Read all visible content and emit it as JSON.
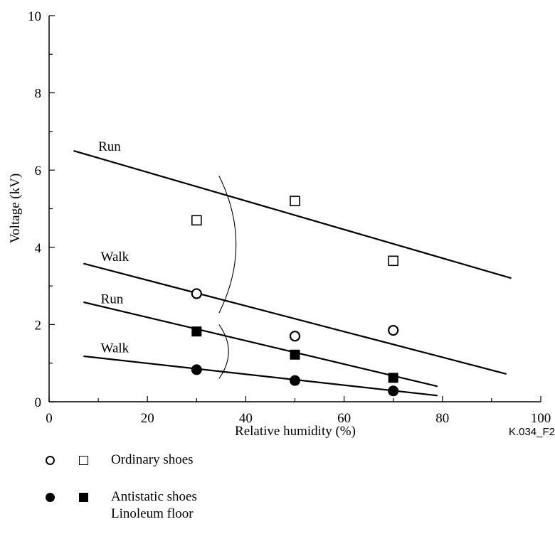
{
  "chart_data": {
    "type": "scatter",
    "xlabel": "Relative humidity (%)",
    "ylabel": "Voltage (kV)",
    "xlim": [
      0,
      100
    ],
    "ylim": [
      0,
      10
    ],
    "x_ticks": [
      0,
      20,
      40,
      60,
      80,
      100
    ],
    "y_ticks": [
      0,
      2,
      4,
      6,
      8,
      10
    ],
    "series": [
      {
        "shoe": "Ordinary shoes",
        "marker": "open-square",
        "activity": "Run",
        "points": [
          [
            30,
            4.7
          ],
          [
            50,
            5.2
          ],
          [
            70,
            3.65
          ]
        ],
        "fit": [
          [
            5,
            6.5
          ],
          [
            94,
            3.2
          ]
        ]
      },
      {
        "shoe": "Ordinary shoes",
        "marker": "open-circle",
        "activity": "Walk",
        "points": [
          [
            30,
            2.8
          ],
          [
            50,
            1.7
          ],
          [
            70,
            1.85
          ]
        ],
        "fit": [
          [
            7,
            3.58
          ],
          [
            93,
            0.72
          ]
        ]
      },
      {
        "shoe": "Antistatic shoes",
        "marker": "filled-square",
        "activity": "Run",
        "points": [
          [
            30,
            1.82
          ],
          [
            50,
            1.22
          ],
          [
            70,
            0.62
          ]
        ],
        "fit": [
          [
            7,
            2.58
          ],
          [
            79,
            0.4
          ]
        ]
      },
      {
        "shoe": "Antistatic shoes",
        "marker": "filled-circle",
        "activity": "Walk",
        "points": [
          [
            30,
            0.83
          ],
          [
            50,
            0.55
          ],
          [
            70,
            0.28
          ]
        ],
        "fit": [
          [
            7,
            1.18
          ],
          [
            79,
            0.16
          ]
        ]
      }
    ],
    "line_labels": [
      {
        "text": "Run",
        "x": 10,
        "y": 6.5
      },
      {
        "text": "Walk",
        "x": 10.5,
        "y": 3.65
      },
      {
        "text": "Run",
        "x": 10.5,
        "y": 2.55
      },
      {
        "text": "Walk",
        "x": 10.5,
        "y": 1.28
      }
    ],
    "brackets": [
      {
        "x": 35,
        "y_top": 5.85,
        "y_bottom": 2.3
      },
      {
        "x": 35,
        "y_top": 2.0,
        "y_bottom": 0.6
      }
    ],
    "figure_id": "K.034_F2",
    "legend": {
      "ordinary": "Ordinary shoes",
      "antistatic": "Antistatic shoes",
      "floor": "Linoleum floor"
    }
  }
}
